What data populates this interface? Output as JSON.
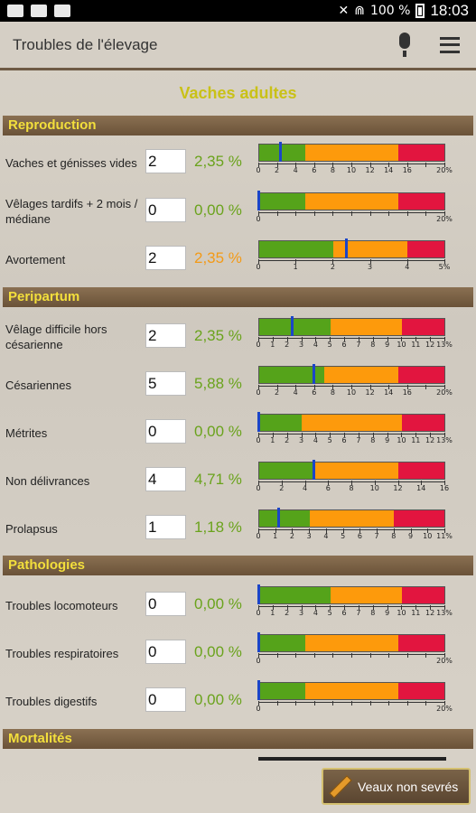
{
  "statusbar": {
    "battery": "100 %",
    "time": "18:03"
  },
  "appbar": {
    "title": "Troubles de l'élevage"
  },
  "page_title": "Vaches adultes",
  "sections": [
    {
      "title": "Reproduction",
      "rows": [
        {
          "label": "Vaches et génisses vides",
          "value": "2",
          "pct": "2,35 %",
          "pct_color": "#6aa31c",
          "gauge": {
            "max": 20,
            "green": 5,
            "orange": 15,
            "marker": 2.35,
            "ticks": [
              "0",
              "2",
              "4",
              "6",
              "8",
              "10",
              "12",
              "14",
              "16",
              "",
              "20%"
            ]
          }
        },
        {
          "label": "Vêlages tardifs + 2 mois / médiane",
          "value": "0",
          "pct": "0,00 %",
          "pct_color": "#6aa31c",
          "gauge": {
            "max": 20,
            "green": 5,
            "orange": 15,
            "marker": 0,
            "ticks": [
              "0",
              "",
              "",
              "",
              "",
              "",
              "",
              "",
              "",
              "",
              "20%"
            ]
          }
        },
        {
          "label": "Avortement",
          "value": "2",
          "pct": "2,35 %",
          "pct_color": "#f39a16",
          "gauge": {
            "max": 5,
            "green": 2,
            "orange": 4,
            "marker": 2.35,
            "ticks": [
              "0",
              "1",
              "2",
              "3",
              "4",
              "5%"
            ]
          }
        }
      ]
    },
    {
      "title": "Peripartum",
      "rows": [
        {
          "label": "Vêlage difficile hors césarienne",
          "value": "2",
          "pct": "2,35 %",
          "pct_color": "#6aa31c",
          "gauge": {
            "max": 13,
            "green": 5,
            "orange": 10,
            "marker": 2.35,
            "ticks": [
              "0",
              "1",
              "2",
              "3",
              "4",
              "5",
              "6",
              "7",
              "8",
              "9",
              "10",
              "11",
              "12",
              "13%"
            ]
          }
        },
        {
          "label": "Césariennes",
          "value": "5",
          "pct": "5,88 %",
          "pct_color": "#6aa31c",
          "gauge": {
            "max": 20,
            "green": 7,
            "orange": 15,
            "marker": 5.88,
            "ticks": [
              "0",
              "2",
              "4",
              "6",
              "8",
              "10",
              "12",
              "14",
              "16",
              "",
              "20%"
            ]
          }
        },
        {
          "label": "Métrites",
          "value": "0",
          "pct": "0,00 %",
          "pct_color": "#6aa31c",
          "gauge": {
            "max": 13,
            "green": 3,
            "orange": 10,
            "marker": 0,
            "ticks": [
              "0",
              "1",
              "2",
              "3",
              "4",
              "5",
              "6",
              "7",
              "8",
              "9",
              "10",
              "11",
              "12",
              "13%"
            ]
          }
        },
        {
          "label": "Non délivrances",
          "value": "4",
          "pct": "4,71 %",
          "pct_color": "#6aa31c",
          "gauge": {
            "max": 16,
            "green": 4.8,
            "orange": 12,
            "marker": 4.71,
            "ticks": [
              "0",
              "2",
              "4",
              "6",
              "8",
              "10",
              "12",
              "14",
              "16"
            ]
          }
        },
        {
          "label": "Prolapsus",
          "value": "1",
          "pct": "1,18 %",
          "pct_color": "#6aa31c",
          "gauge": {
            "max": 11,
            "green": 3,
            "orange": 8,
            "marker": 1.18,
            "ticks": [
              "0",
              "1",
              "2",
              "3",
              "4",
              "5",
              "6",
              "7",
              "8",
              "9",
              "10",
              "11%"
            ]
          }
        }
      ]
    },
    {
      "title": "Pathologies",
      "rows": [
        {
          "label": "Troubles locomoteurs",
          "value": "0",
          "pct": "0,00 %",
          "pct_color": "#6aa31c",
          "gauge": {
            "max": 13,
            "green": 5,
            "orange": 10,
            "marker": 0,
            "ticks": [
              "0",
              "1",
              "2",
              "3",
              "4",
              "5",
              "6",
              "7",
              "8",
              "9",
              "10",
              "11",
              "12",
              "13%"
            ]
          }
        },
        {
          "label": "Troubles respiratoires",
          "value": "0",
          "pct": "0,00 %",
          "pct_color": "#6aa31c",
          "gauge": {
            "max": 20,
            "green": 5,
            "orange": 15,
            "marker": 0,
            "ticks": [
              "0",
              "",
              "",
              "",
              "",
              "",
              "",
              "",
              "",
              "",
              "20%"
            ]
          }
        },
        {
          "label": "Troubles digestifs",
          "value": "0",
          "pct": "0,00 %",
          "pct_color": "#6aa31c",
          "gauge": {
            "max": 20,
            "green": 5,
            "orange": 15,
            "marker": 0,
            "ticks": [
              "0",
              "",
              "",
              "",
              "",
              "",
              "",
              "",
              "",
              "",
              "20%"
            ]
          }
        }
      ]
    },
    {
      "title": "Mortalités",
      "rows": []
    }
  ],
  "colors": {
    "green": "#55a31a",
    "orange": "#fd9a0c",
    "red": "#e2153f",
    "marker": "#1b45c8"
  },
  "fab": {
    "label": "Veaux non sevrés"
  }
}
